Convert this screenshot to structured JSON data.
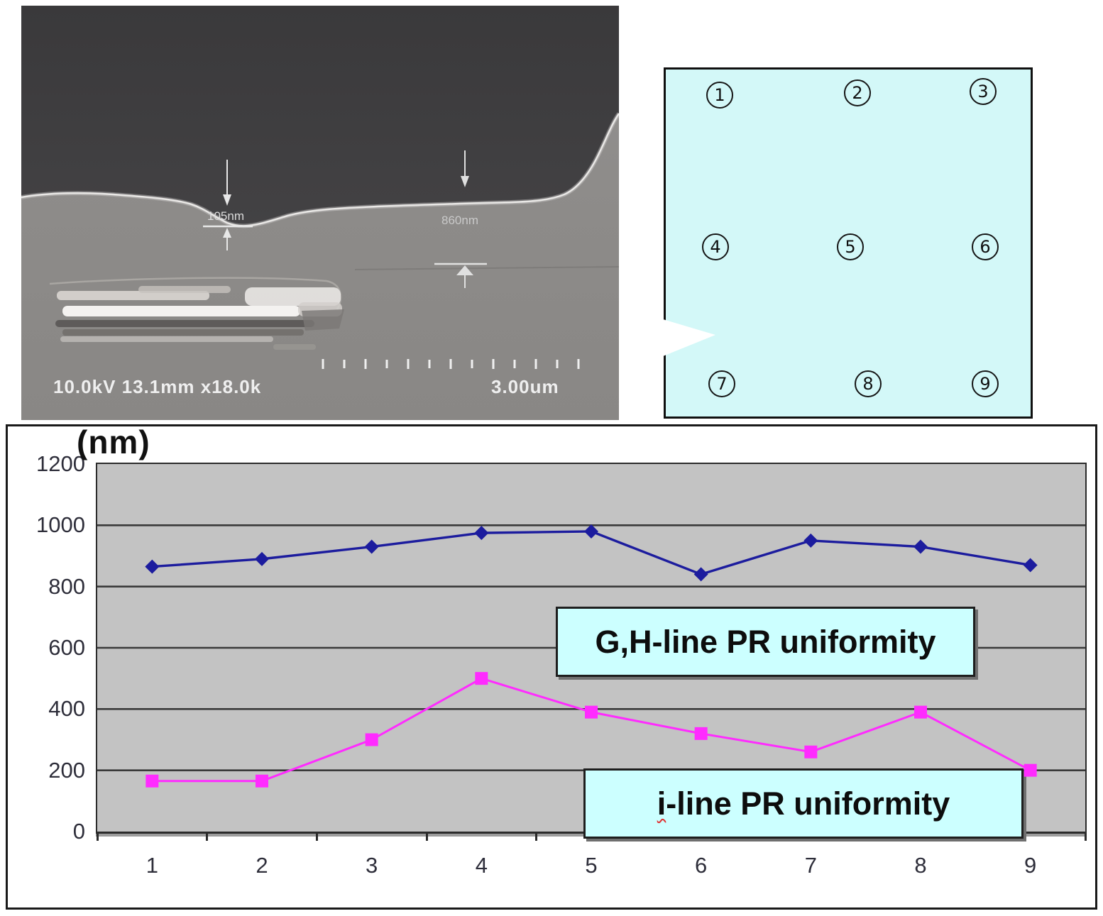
{
  "sem_image": {
    "status_text": "10.0kV 13.1mm x18.0k",
    "scale_label": "3.00um",
    "measurement_left": "105nm",
    "measurement_right": "860nm"
  },
  "wafer_map": {
    "points": [
      "1",
      "2",
      "3",
      "4",
      "5",
      "6",
      "7",
      "8",
      "9"
    ]
  },
  "chart_data": {
    "type": "line",
    "title": "",
    "ylabel": "(nm)",
    "xlabel": "",
    "categories": [
      "1",
      "2",
      "3",
      "4",
      "5",
      "6",
      "7",
      "8",
      "9"
    ],
    "series": [
      {
        "name": "G,H-line PR uniformity",
        "values": [
          865,
          890,
          930,
          975,
          980,
          840,
          950,
          930,
          870
        ],
        "color": "#1c1c9e",
        "marker": "diamond"
      },
      {
        "name": "i-line PR uniformity",
        "values": [
          165,
          165,
          300,
          500,
          390,
          320,
          260,
          390,
          200
        ],
        "color": "#ff2bff",
        "marker": "square"
      }
    ],
    "yticks": [
      0,
      200,
      400,
      600,
      800,
      1000,
      1200
    ],
    "ylim": [
      0,
      1200
    ],
    "grid": true,
    "legend_position": "inline-boxes"
  },
  "labels": {
    "gh_box": "G,H-line PR uniformity",
    "i_box_first": "i",
    "i_box_rest": "-line PR uniformity"
  },
  "colors": {
    "gh_series": "#1c1c9e",
    "i_series": "#ff2bff",
    "plot_bg": "#c3c3c3",
    "grid_line": "#3a3a3a",
    "label_box_bg": "#ccffff",
    "wafer_bg": "#d3f8f8"
  }
}
